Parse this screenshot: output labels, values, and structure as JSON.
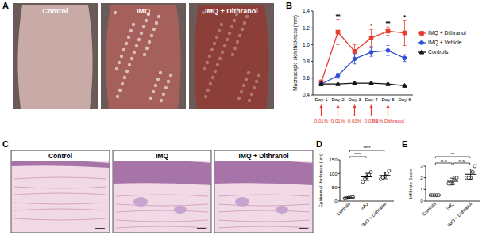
{
  "panel_labels": [
    "A",
    "B",
    "C",
    "D",
    "E"
  ],
  "photos": {
    "labels": [
      "Control",
      "IMQ",
      "IMQ + Dithranol"
    ]
  },
  "histology": {
    "labels": [
      "Control",
      "IMQ",
      "IMQ + Dithranol"
    ]
  },
  "chart_data": [
    {
      "type": "line",
      "y_label": "Macroscopic skin thickness (mm)",
      "categories": [
        "Day 1",
        "Day 2",
        "Day 3",
        "Day 4",
        "Day 5",
        "Day 6"
      ],
      "series": [
        {
          "name": "IMQ + Dithranol",
          "color": "#e8392b",
          "marker": "square",
          "values": [
            0.55,
            1.15,
            0.92,
            1.08,
            1.16,
            1.14
          ],
          "errors": [
            0.03,
            0.15,
            0.08,
            0.1,
            0.05,
            0.15
          ]
        },
        {
          "name": "IMQ + Vehicle",
          "color": "#2f4fd6",
          "marker": "circle",
          "values": [
            0.53,
            0.63,
            0.83,
            0.91,
            0.93,
            0.84
          ],
          "errors": [
            0.02,
            0.03,
            0.06,
            0.05,
            0.06,
            0.04
          ]
        },
        {
          "name": "Controls",
          "color": "#111111",
          "marker": "triangle",
          "values": [
            0.53,
            0.53,
            0.54,
            0.54,
            0.53,
            0.51
          ],
          "errors": [
            0.01,
            0.01,
            0.01,
            0.01,
            0.01,
            0.01
          ]
        }
      ],
      "ylim": [
        0.4,
        1.4
      ],
      "yticks": [
        0.4,
        0.6,
        0.8,
        {
          "value": 1,
          "label": "1.0"
        },
        1.2,
        1.4
      ],
      "legend": "right",
      "significance": [
        {
          "category": "Day 2",
          "label": "**"
        },
        {
          "category": "Day 4",
          "label": "*"
        },
        {
          "category": "Day 5",
          "label": "**"
        },
        {
          "category": "Day 6",
          "label": "*"
        }
      ],
      "doses": [
        {
          "category": "Day 1",
          "label": "0.01%"
        },
        {
          "category": "Day 2",
          "label": "0.01%"
        },
        {
          "category": "Day 3",
          "label": "0.03%"
        },
        {
          "category": "Day 4",
          "label": "0.03%"
        },
        {
          "category": "Day 5",
          "label": "0.1% Dithranol"
        }
      ]
    },
    {
      "type": "dot_plot",
      "y_label": "Epidermal thickness (μm)",
      "categories": [
        "Controls",
        "IMQ",
        "IMQ + Dithranol"
      ],
      "values": [
        12,
        88,
        93
      ],
      "errors": [
        2,
        13,
        12
      ],
      "points": [
        [
          9,
          11,
          12,
          13,
          14
        ],
        [
          70,
          80,
          88,
          95,
          105
        ],
        [
          80,
          85,
          90,
          100,
          110
        ]
      ],
      "color": "#000000",
      "ylim": [
        0,
        150
      ],
      "yticks": [
        0,
        50,
        100,
        150
      ],
      "comparisons": [
        {
          "from": "Controls",
          "to": "IMQ",
          "label": "****"
        },
        {
          "from": "Controls",
          "to": "IMQ + Dithranol",
          "label": "****"
        }
      ]
    },
    {
      "type": "dot_plot",
      "y_label": "Infiltrate Score",
      "categories": [
        "Controls",
        "IMQ",
        "IMQ + Dithranol"
      ],
      "values": [
        0.5,
        1.7,
        2.3
      ],
      "errors": [
        0,
        0.27,
        0.45
      ],
      "points": [
        [
          0.5,
          0.5,
          0.5,
          0.5,
          0.5
        ],
        [
          1.5,
          1.5,
          1.5,
          2,
          2
        ],
        [
          2,
          2,
          2,
          2.5,
          3
        ]
      ],
      "color": "#000000",
      "ylim": [
        0,
        3
      ],
      "yticks": [
        0,
        1,
        2,
        3
      ],
      "comparisons": [
        {
          "from": "Controls",
          "to": "IMQ",
          "label": "n.s"
        },
        {
          "from": "IMQ",
          "to": "IMQ + Dithranol",
          "label": "n.s"
        },
        {
          "from": "Controls",
          "to": "IMQ + Dithranol",
          "label": "**"
        }
      ]
    }
  ]
}
